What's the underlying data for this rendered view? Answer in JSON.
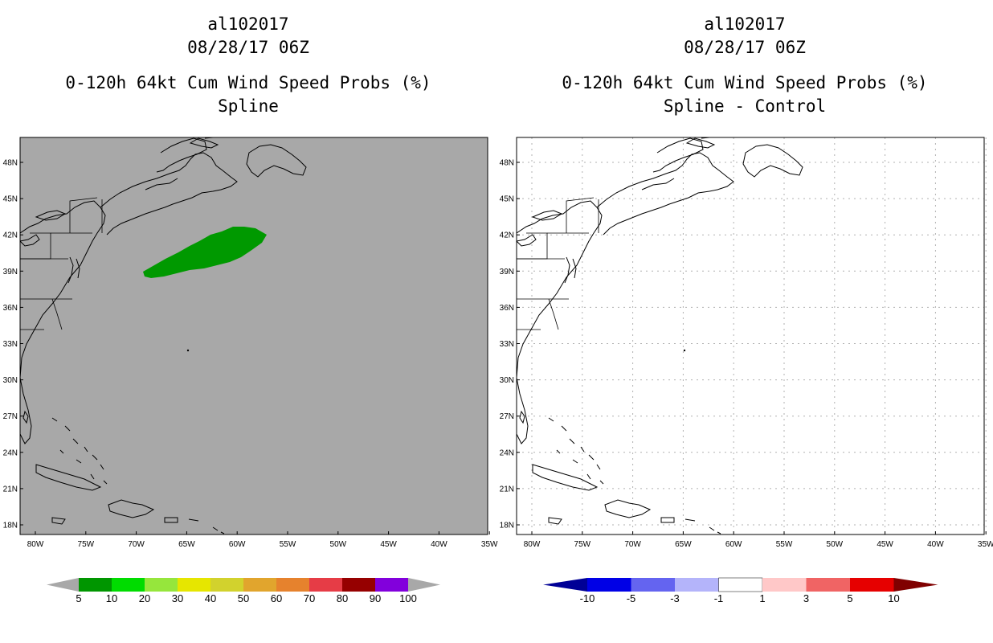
{
  "left_panel": {
    "title_line1": "al102017",
    "title_line2": "08/28/17 06Z",
    "title_line3": "0-120h 64kt Cum Wind Speed Probs (%)",
    "title_line4": "Spline",
    "background_color": "#a8a8a8",
    "probability_area_color": "#009900",
    "lat_labels": [
      "48N",
      "45N",
      "42N",
      "39N",
      "36N",
      "33N",
      "30N",
      "27N",
      "24N",
      "21N",
      "18N"
    ],
    "lon_labels": [
      "80W",
      "75W",
      "70W",
      "65W",
      "60W",
      "55W",
      "50W",
      "45W",
      "40W",
      "35W"
    ],
    "colorbar": {
      "labels": [
        "5",
        "10",
        "20",
        "30",
        "40",
        "50",
        "60",
        "70",
        "80",
        "90",
        "100"
      ],
      "colors": [
        "#a8a8a8",
        "#009600",
        "#00dc00",
        "#96e63c",
        "#e6e600",
        "#d2d22d",
        "#e1a52d",
        "#e6822d",
        "#e63c46",
        "#960000",
        "#8200dc",
        "#a8a8a8"
      ]
    }
  },
  "right_panel": {
    "title_line1": "al102017",
    "title_line2": "08/28/17 06Z",
    "title_line3": "0-120h 64kt Cum Wind Speed Probs (%)",
    "title_line4": "Spline - Control",
    "background_color": "#ffffff",
    "lat_labels": [
      "48N",
      "45N",
      "42N",
      "39N",
      "36N",
      "33N",
      "30N",
      "27N",
      "24N",
      "21N",
      "18N"
    ],
    "lon_labels": [
      "80W",
      "75W",
      "70W",
      "65W",
      "60W",
      "55W",
      "50W",
      "45W",
      "40W",
      "35W"
    ],
    "colorbar": {
      "labels": [
        "-10",
        "-5",
        "-3",
        "-1",
        "1",
        "3",
        "5",
        "10"
      ],
      "colors": [
        "#000096",
        "#0000e6",
        "#6464f0",
        "#b4b4fa",
        "#ffffff",
        "#ffc8c8",
        "#f06464",
        "#e60000",
        "#800000"
      ]
    }
  }
}
